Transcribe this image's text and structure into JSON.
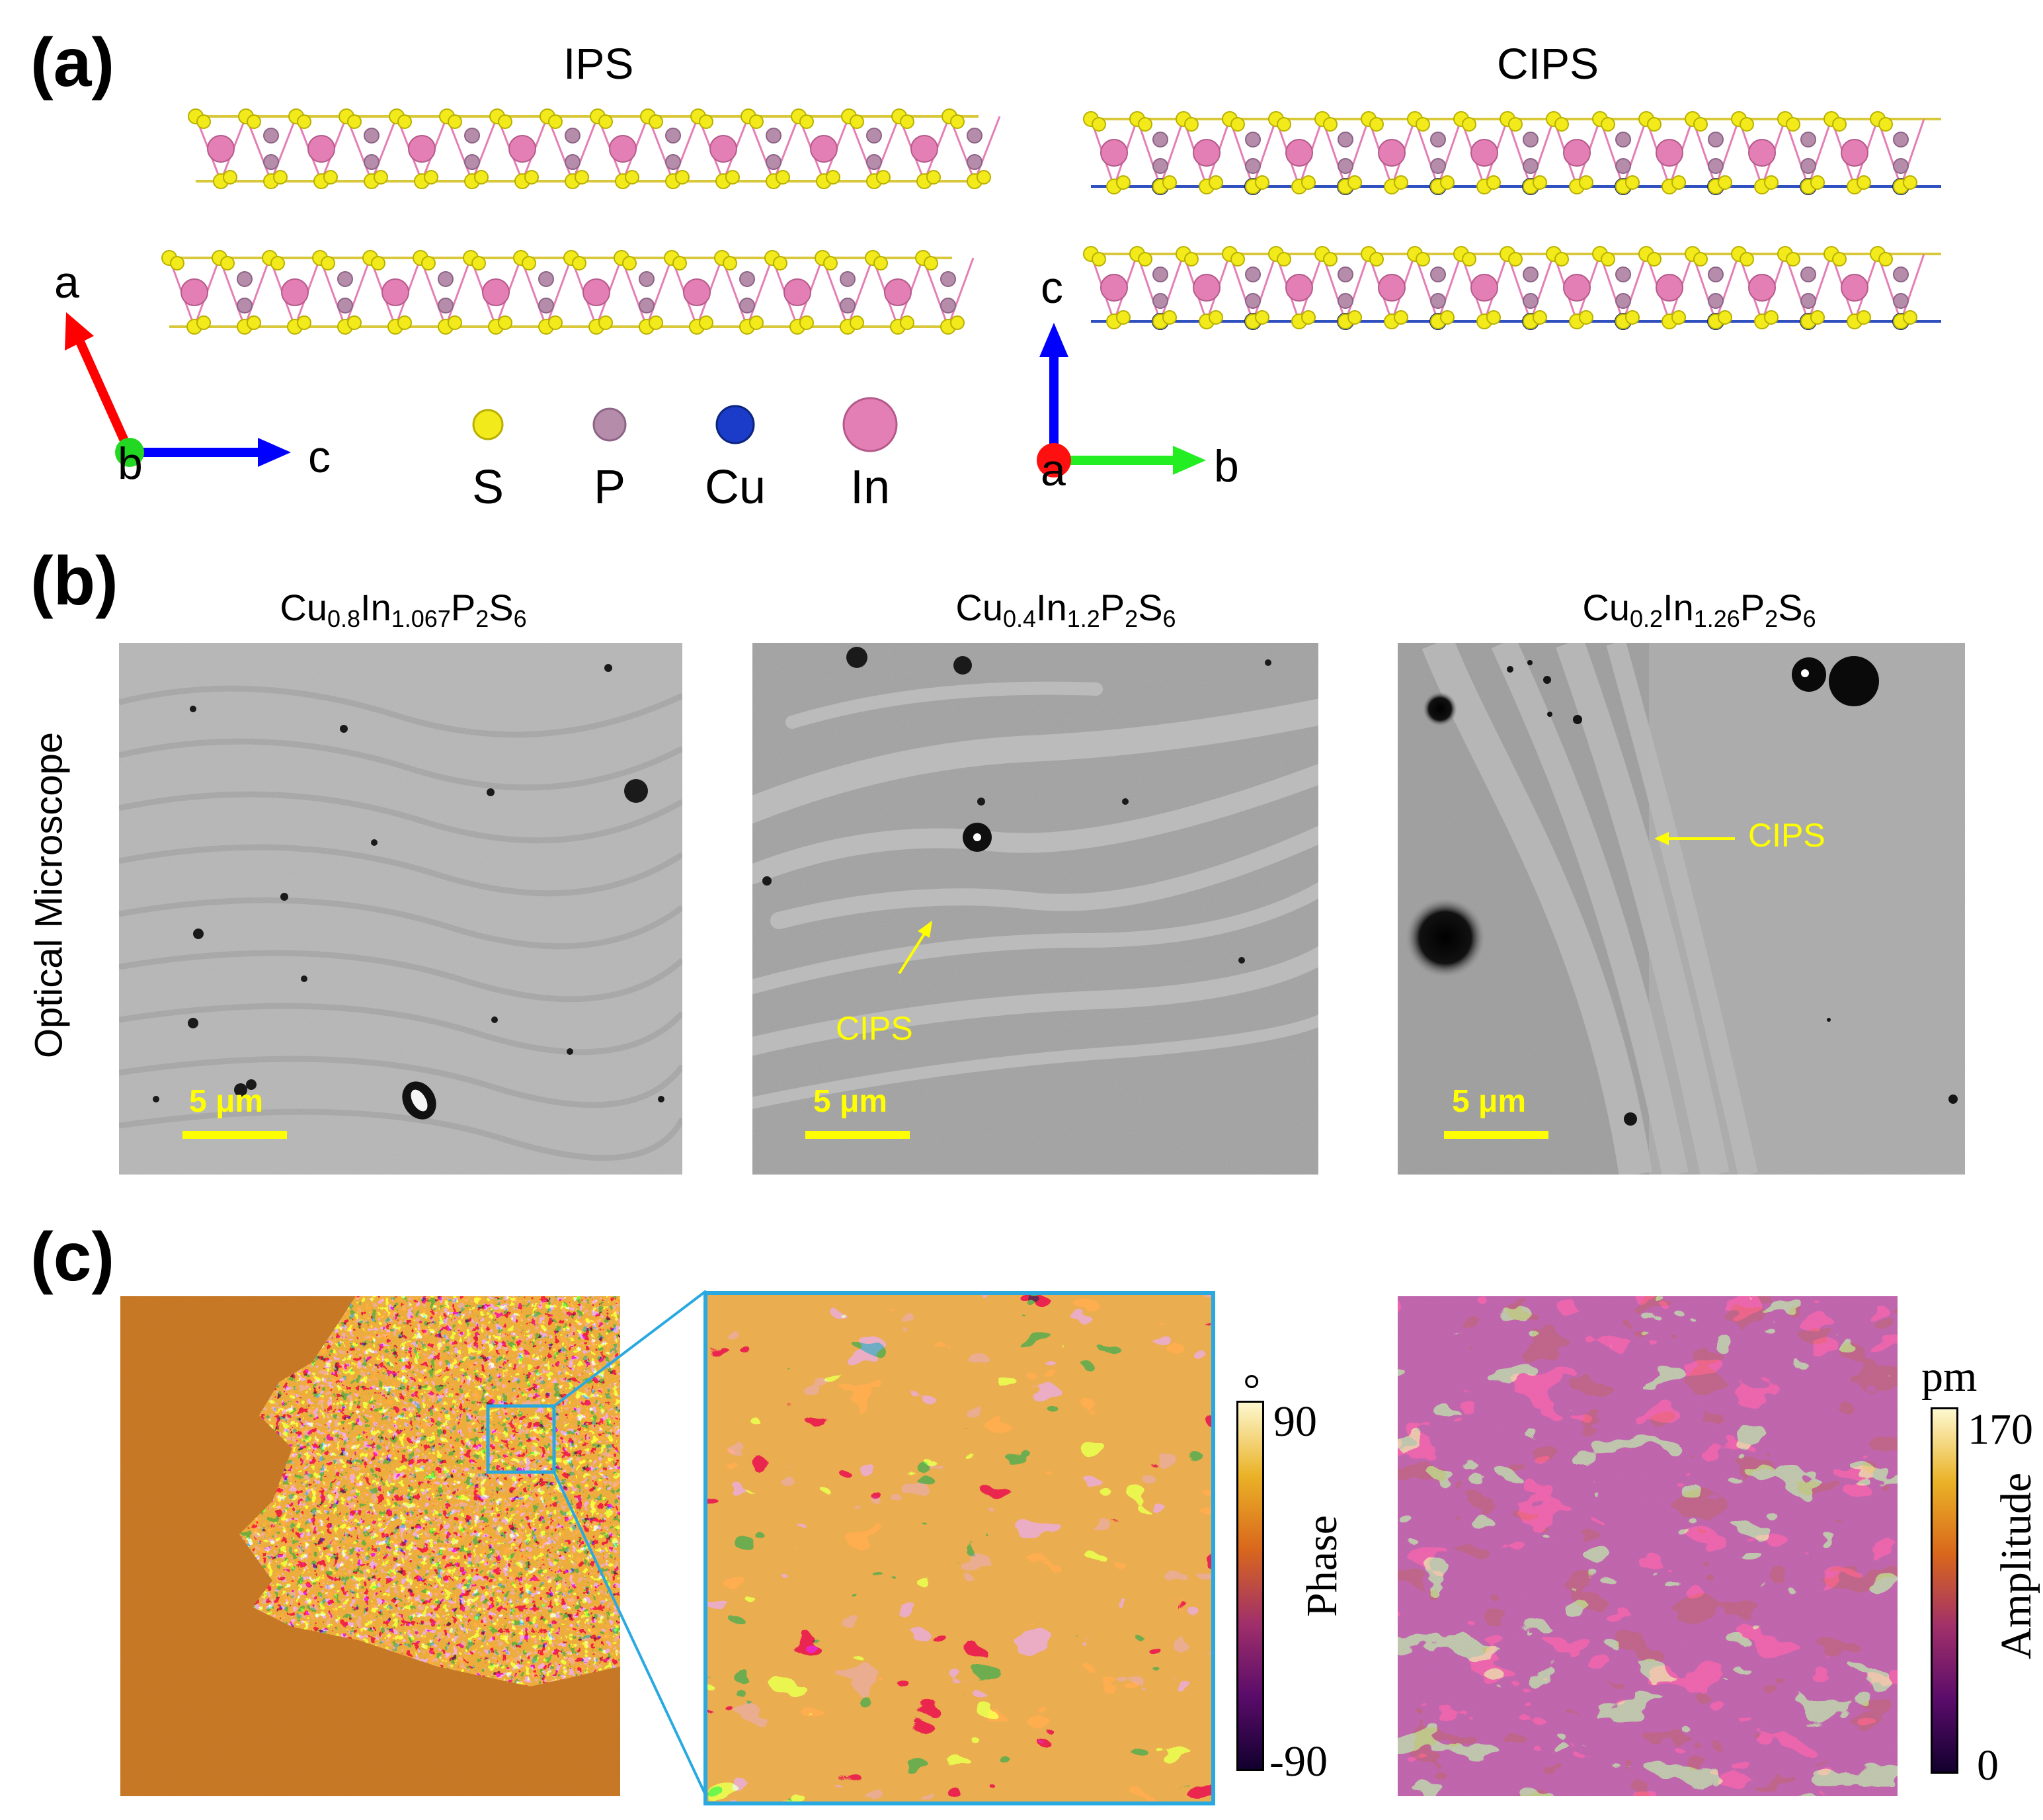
{
  "panel_a": {
    "letter": "(a)",
    "ips_title": "IPS",
    "cips_title": "CIPS",
    "axes_left": {
      "up": "a",
      "origin": "b",
      "right": "c"
    },
    "axes_right": {
      "up": "c",
      "origin": "a",
      "right": "b"
    },
    "legend": [
      {
        "symbol": "S",
        "color": "#f2ea1a"
      },
      {
        "symbol": "P",
        "color": "#b68cab"
      },
      {
        "symbol": "Cu",
        "color": "#1a3cc8"
      },
      {
        "symbol": "In",
        "color": "#e47fb5"
      }
    ]
  },
  "panel_b": {
    "letter": "(b)",
    "side_label": "Optical Microscope",
    "images": [
      {
        "formula_parts": [
          "Cu",
          "0.8",
          "In",
          "1.067",
          "P",
          "2",
          "S",
          "6"
        ],
        "scale_label": "5 μm",
        "annotation": ""
      },
      {
        "formula_parts": [
          "Cu",
          "0.4",
          "In",
          "1.2",
          "P",
          "2",
          "S",
          "6"
        ],
        "scale_label": "5 μm",
        "annotation": "CIPS"
      },
      {
        "formula_parts": [
          "Cu",
          "0.2",
          "In",
          "1.26",
          "P",
          "2",
          "S",
          "6"
        ],
        "scale_label": "5 μm",
        "annotation": "CIPS"
      }
    ]
  },
  "panel_c": {
    "letter": "(c)",
    "phase_colorbar": {
      "unit": "°",
      "title": "Phase",
      "max": "90",
      "min": "-90"
    },
    "amplitude_colorbar": {
      "unit": "pm",
      "title": "Amplitude",
      "max": "170",
      "min": "0"
    },
    "zoom_box_color": "#29a9e0"
  }
}
